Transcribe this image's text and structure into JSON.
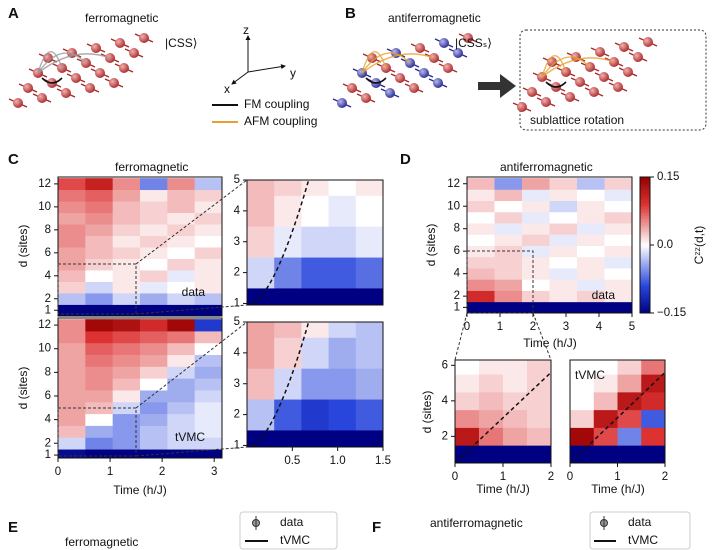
{
  "figure": {
    "panel_labels": [
      "A",
      "B",
      "C",
      "D",
      "E",
      "F"
    ],
    "a": {
      "title": "ferromagnetic",
      "state": "|CSS⟩",
      "axes": [
        "z",
        "y",
        "x"
      ],
      "couplings": [
        "FM coupling",
        "AFM coupling"
      ]
    },
    "b": {
      "title": "antiferromagnetic",
      "state": "|CSSₛ⟩",
      "box": "sublattice rotation"
    },
    "c": {
      "title": "ferromagnetic"
    },
    "d": {
      "title": "antiferromagnetic"
    },
    "e": {
      "title": "ferromagnetic",
      "legend": [
        "data",
        "tVMC"
      ]
    },
    "f": {
      "title": "antiferromagnetic",
      "legend": [
        "data",
        "tVMC"
      ]
    }
  },
  "colorbar": {
    "label": "Cᶻᶻ(d,t)",
    "lim": [
      -0.15,
      0.15
    ],
    "ticks": [
      {
        "value": 0.15,
        "label": "0.15"
      },
      {
        "value": 0,
        "label": "0.0"
      },
      {
        "value": -0.15,
        "label": "−0.15"
      }
    ]
  },
  "chart_data": [
    {
      "type": "heatmap",
      "label": "data",
      "ylabel": "d (sites)",
      "xlim": [
        0,
        3.15
      ],
      "ylim": [
        0.5,
        12.6
      ],
      "yticks": [
        1,
        2,
        4,
        6,
        8,
        10,
        12
      ],
      "z": [
        [
          -0.15,
          -0.15,
          -0.15,
          -0.15,
          -0.15,
          -0.15
        ],
        [
          -0.03,
          -0.05,
          -0.02,
          -0.04,
          -0.02,
          -0.03
        ],
        [
          0.02,
          -0.02,
          0.01,
          -0.01,
          0.0,
          0.01
        ],
        [
          0.03,
          0.0,
          0.01,
          0.02,
          -0.01,
          0.01
        ],
        [
          0.04,
          0.02,
          0.01,
          0.0,
          0.02,
          0.01
        ],
        [
          0.04,
          0.03,
          0.02,
          0.01,
          0.0,
          0.02
        ],
        [
          0.05,
          0.03,
          0.01,
          0.02,
          0.01,
          0.0
        ],
        [
          0.05,
          0.04,
          0.02,
          0.01,
          0.02,
          0.01
        ],
        [
          0.04,
          0.05,
          0.03,
          0.02,
          0.01,
          0.02
        ],
        [
          0.05,
          0.06,
          0.03,
          0.02,
          0.03,
          0.01
        ],
        [
          0.06,
          0.07,
          0.04,
          0.01,
          0.03,
          0.02
        ],
        [
          0.08,
          0.11,
          0.05,
          -0.06,
          0.05,
          -0.03
        ]
      ]
    },
    {
      "type": "heatmap",
      "label": "tVMC",
      "ylabel": "d (sites)",
      "xlabel": "Time (h/J)",
      "xlim": [
        0,
        3.15
      ],
      "ylim": [
        0.75,
        12.6
      ],
      "xticks": [
        0,
        1,
        2,
        3
      ],
      "yticks": [
        1,
        2,
        4,
        6,
        8,
        10,
        12
      ],
      "z": [
        [
          -0.14,
          -0.15,
          -0.15,
          -0.15,
          -0.15,
          -0.15
        ],
        [
          -0.02,
          -0.06,
          -0.05,
          -0.03,
          -0.02,
          -0.02
        ],
        [
          0.03,
          -0.04,
          -0.05,
          -0.03,
          -0.02,
          -0.01
        ],
        [
          0.04,
          0.0,
          -0.05,
          -0.04,
          -0.02,
          -0.01
        ],
        [
          0.04,
          0.03,
          -0.02,
          -0.05,
          -0.03,
          -0.01
        ],
        [
          0.04,
          0.04,
          0.01,
          -0.04,
          -0.04,
          -0.02
        ],
        [
          0.04,
          0.05,
          0.03,
          0.0,
          -0.04,
          -0.03
        ],
        [
          0.04,
          0.05,
          0.04,
          0.02,
          -0.02,
          -0.04
        ],
        [
          0.04,
          0.06,
          0.05,
          0.04,
          0.01,
          -0.03
        ],
        [
          0.04,
          0.07,
          0.06,
          0.05,
          0.03,
          0.0
        ],
        [
          0.05,
          0.09,
          0.08,
          0.07,
          0.06,
          0.03
        ],
        [
          0.05,
          0.14,
          0.13,
          0.1,
          0.14,
          -0.1
        ]
      ]
    },
    {
      "type": "heatmap",
      "xlim": [
        0,
        1.5
      ],
      "ylim": [
        0.95,
        5
      ],
      "yticks": [
        1,
        2,
        3,
        4,
        5
      ],
      "z": [
        [
          -0.15,
          -0.15,
          -0.15,
          -0.15,
          -0.15
        ],
        [
          -0.02,
          -0.06,
          -0.08,
          -0.08,
          -0.07
        ],
        [
          0.02,
          -0.01,
          -0.02,
          -0.02,
          -0.01
        ],
        [
          0.03,
          0.01,
          0.0,
          -0.01,
          0.0
        ],
        [
          0.03,
          0.02,
          0.01,
          0.0,
          0.01
        ]
      ]
    },
    {
      "type": "heatmap",
      "xlim": [
        0,
        1.5
      ],
      "ylim": [
        0.95,
        5
      ],
      "yticks": [
        1,
        2,
        3,
        4,
        5
      ],
      "xticks": [
        {
          "value": 0.5,
          "label": "0.5"
        },
        {
          "value": 1,
          "label": "1.0"
        },
        {
          "value": 1.5,
          "label": "1.5"
        }
      ],
      "z": [
        [
          -0.15,
          -0.15,
          -0.15,
          -0.15,
          -0.15
        ],
        [
          -0.03,
          -0.08,
          -0.1,
          -0.09,
          -0.08
        ],
        [
          0.03,
          -0.02,
          -0.05,
          -0.05,
          -0.04
        ],
        [
          0.04,
          0.02,
          -0.02,
          -0.04,
          -0.03
        ],
        [
          0.04,
          0.03,
          0.01,
          -0.02,
          -0.03
        ]
      ]
    },
    {
      "type": "heatmap",
      "label": "data",
      "ylabel": "d (sites)",
      "xlabel": "Time (h/J)",
      "xlim": [
        0,
        5
      ],
      "ylim": [
        0.5,
        12.6
      ],
      "xticks": [
        0,
        1,
        2,
        3,
        4,
        5
      ],
      "yticks": [
        1,
        2,
        4,
        6,
        8,
        10,
        12
      ],
      "z": [
        [
          -0.15,
          -0.15,
          -0.15,
          -0.15,
          -0.15,
          -0.15
        ],
        [
          0.1,
          0.05,
          0.02,
          0.01,
          0.02,
          0.01
        ],
        [
          0.05,
          0.04,
          0.0,
          0.01,
          -0.01,
          0.01
        ],
        [
          0.03,
          0.02,
          0.01,
          -0.01,
          0.01,
          0.0
        ],
        [
          0.02,
          0.02,
          0.01,
          0.0,
          0.01,
          -0.01
        ],
        [
          0.01,
          0.02,
          -0.01,
          0.01,
          0.0,
          0.01
        ],
        [
          0.0,
          0.01,
          0.02,
          -0.01,
          0.01,
          0.0
        ],
        [
          0.01,
          -0.01,
          0.01,
          0.02,
          -0.01,
          0.01
        ],
        [
          0.0,
          0.02,
          -0.01,
          0.0,
          0.01,
          0.02
        ],
        [
          0.02,
          0.0,
          0.01,
          -0.02,
          0.01,
          0.0
        ],
        [
          0.01,
          0.03,
          -0.01,
          0.01,
          0.0,
          -0.01
        ],
        [
          0.03,
          -0.05,
          0.04,
          0.02,
          -0.03,
          0.02
        ]
      ]
    },
    {
      "type": "heatmap",
      "ylabel": "d (sites)",
      "xlabel": "Time (h/J)",
      "xlim": [
        0,
        2
      ],
      "ylim": [
        0.5,
        6.3
      ],
      "xticks": [
        0,
        1,
        2
      ],
      "yticks": [
        2,
        4,
        6
      ],
      "z": [
        [
          -0.15,
          -0.15,
          -0.15,
          -0.15
        ],
        [
          0.12,
          0.06,
          0.04,
          0.03
        ],
        [
          0.05,
          0.04,
          0.03,
          0.02
        ],
        [
          0.02,
          0.03,
          0.02,
          0.02
        ],
        [
          0.01,
          0.02,
          0.01,
          0.02
        ],
        [
          0.0,
          0.01,
          0.01,
          0.02
        ]
      ]
    },
    {
      "type": "heatmap",
      "label": "tVMC",
      "xlabel": "Time (h/J)",
      "xlim": [
        0,
        2
      ],
      "ylim": [
        0.5,
        6.3
      ],
      "xticks": [
        0,
        1,
        2
      ],
      "z": [
        [
          -0.15,
          -0.15,
          -0.15,
          -0.15
        ],
        [
          0.14,
          0.08,
          -0.06,
          0.09
        ],
        [
          0.02,
          0.12,
          0.08,
          -0.08
        ],
        [
          0.0,
          0.03,
          0.12,
          0.1
        ],
        [
          0.0,
          0.01,
          0.04,
          0.12
        ],
        [
          0.0,
          0.0,
          0.02,
          0.06
        ]
      ]
    }
  ]
}
